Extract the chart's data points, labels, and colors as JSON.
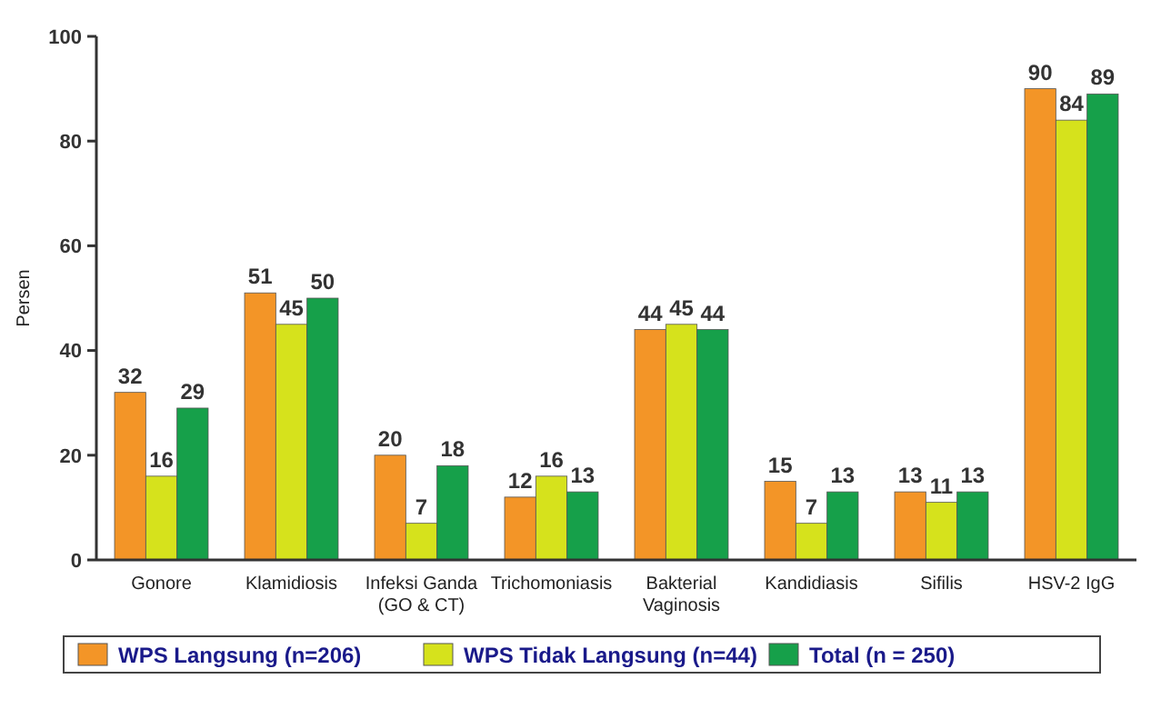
{
  "chart_data": {
    "type": "bar",
    "ylabel": "Persen",
    "categories": [
      "Gonore",
      "Klamidiosis",
      "Infeksi Ganda\n(GO & CT)",
      "Trichomoniasis",
      "Bakterial\nVaginosis",
      "Kandidiasis",
      "Sifilis",
      "HSV-2 IgG"
    ],
    "series": [
      {
        "name": "WPS Langsung (n=206)",
        "color": "#f39527",
        "values": [
          32,
          51,
          20,
          12,
          44,
          15,
          13,
          90
        ]
      },
      {
        "name": "WPS Tidak Langsung (n=44)",
        "color": "#d6e21c",
        "values": [
          16,
          45,
          7,
          16,
          45,
          7,
          11,
          84
        ]
      },
      {
        "name": "Total (n = 250)",
        "color": "#16a04a",
        "values": [
          29,
          50,
          18,
          13,
          44,
          13,
          13,
          89
        ]
      }
    ],
    "ylim": [
      0,
      100
    ],
    "yticks": [
      0,
      20,
      40,
      60,
      80,
      100
    ],
    "data_labels": true,
    "legend": "bottom",
    "grid": false
  }
}
